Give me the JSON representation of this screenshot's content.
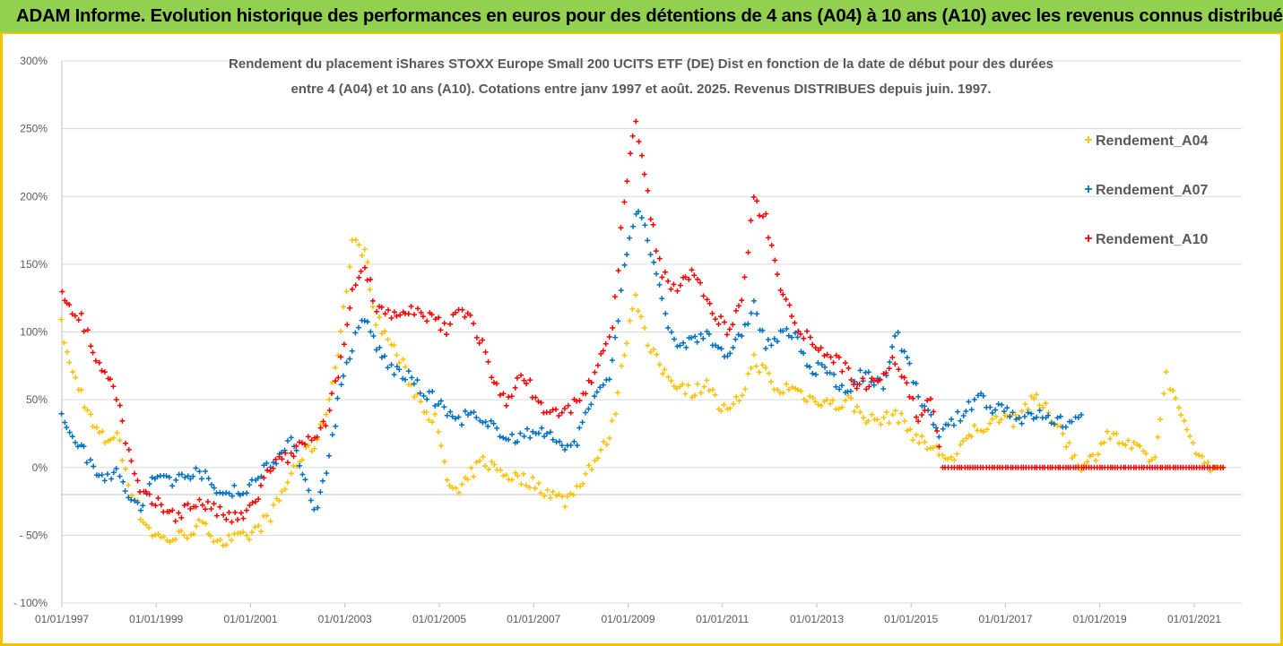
{
  "banner": {
    "text": "ADAM Informe. Evolution historique des performances en euros pour des détentions de 4 ans (A04) à 10 ans (A10) avec les revenus connus distribués",
    "background": "#92d050",
    "border": "#f2c200"
  },
  "chart_data": {
    "type": "scatter",
    "title": [
      "Rendement du placement iShares STOXX Europe Small 200 UCITS ETF (DE) Dist en fonction de la date de début pour des durées",
      "entre 4 (A04) et 10 ans (A10). Cotations entre janv 1997 et août. 2025. Revenus DISTRIBUES depuis juin. 1997."
    ],
    "xlabel": "",
    "ylabel": "",
    "x_tick_labels": [
      "01/01/1997",
      "01/01/1999",
      "01/01/2001",
      "01/01/2003",
      "01/01/2005",
      "01/01/2007",
      "01/01/2009",
      "01/01/2011",
      "01/01/2013",
      "01/01/2015",
      "01/01/2017",
      "01/01/2019",
      "01/01/2021"
    ],
    "x_range": [
      "1997-01-01",
      "2021-09-01"
    ],
    "y_tick_labels": [
      "300%",
      "250%",
      "200%",
      "150%",
      "100%",
      "50%",
      "0%",
      "- 50%",
      "- 100%"
    ],
    "ylim": [
      -100,
      300
    ],
    "grid": true,
    "legend_position": "right",
    "marker": "+",
    "series": [
      {
        "name": "Rendement_A04",
        "color": "#ffc000",
        "points": [
          [
            "1997-01",
            105
          ],
          [
            "1997-03",
            75
          ],
          [
            "1997-06",
            55
          ],
          [
            "1997-09",
            30
          ],
          [
            "1997-12",
            20
          ],
          [
            "1998-03",
            25
          ],
          [
            "1998-06",
            -10
          ],
          [
            "1998-09",
            -35
          ],
          [
            "1998-12",
            -48
          ],
          [
            "1999-03",
            -53
          ],
          [
            "1999-06",
            -52
          ],
          [
            "1999-09",
            -48
          ],
          [
            "1999-12",
            -43
          ],
          [
            "2000-03",
            -48
          ],
          [
            "2000-06",
            -55
          ],
          [
            "2000-09",
            -53
          ],
          [
            "2000-12",
            -52
          ],
          [
            "2001-03",
            -45
          ],
          [
            "2001-06",
            -35
          ],
          [
            "2001-09",
            -20
          ],
          [
            "2001-12",
            0
          ],
          [
            "2002-03",
            10
          ],
          [
            "2002-06",
            20
          ],
          [
            "2002-09",
            50
          ],
          [
            "2002-12",
            100
          ],
          [
            "2003-03",
            165
          ],
          [
            "2003-06",
            160
          ],
          [
            "2003-09",
            110
          ],
          [
            "2003-12",
            95
          ],
          [
            "2004-03",
            80
          ],
          [
            "2004-06",
            60
          ],
          [
            "2004-09",
            45
          ],
          [
            "2004-12",
            35
          ],
          [
            "2005-03",
            -10
          ],
          [
            "2005-06",
            -20
          ],
          [
            "2005-09",
            -5
          ],
          [
            "2005-12",
            5
          ],
          [
            "2006-03",
            0
          ],
          [
            "2006-06",
            -5
          ],
          [
            "2006-09",
            -8
          ],
          [
            "2006-12",
            -10
          ],
          [
            "2007-03",
            -15
          ],
          [
            "2007-06",
            -20
          ],
          [
            "2007-09",
            -25
          ],
          [
            "2007-12",
            -15
          ],
          [
            "2008-03",
            0
          ],
          [
            "2008-06",
            10
          ],
          [
            "2008-09",
            30
          ],
          [
            "2008-12",
            85
          ],
          [
            "2009-03",
            130
          ],
          [
            "2009-06",
            90
          ],
          [
            "2009-09",
            75
          ],
          [
            "2009-12",
            65
          ],
          [
            "2010-03",
            60
          ],
          [
            "2010-06",
            55
          ],
          [
            "2010-09",
            65
          ],
          [
            "2010-12",
            45
          ],
          [
            "2011-03",
            40
          ],
          [
            "2011-06",
            55
          ],
          [
            "2011-09",
            80
          ],
          [
            "2011-12",
            70
          ],
          [
            "2012-03",
            55
          ],
          [
            "2012-06",
            60
          ],
          [
            "2012-09",
            55
          ],
          [
            "2012-12",
            50
          ],
          [
            "2013-03",
            50
          ],
          [
            "2013-06",
            45
          ],
          [
            "2013-09",
            50
          ],
          [
            "2013-12",
            40
          ],
          [
            "2014-03",
            35
          ],
          [
            "2014-06",
            35
          ],
          [
            "2014-09",
            40
          ],
          [
            "2014-12",
            30
          ],
          [
            "2015-03",
            20
          ],
          [
            "2015-06",
            15
          ],
          [
            "2015-09",
            10
          ],
          [
            "2015-12",
            5
          ],
          [
            "2016-03",
            20
          ],
          [
            "2016-06",
            30
          ],
          [
            "2016-09",
            30
          ],
          [
            "2016-12",
            40
          ],
          [
            "2017-03",
            35
          ],
          [
            "2017-06",
            45
          ],
          [
            "2017-09",
            50
          ],
          [
            "2017-12",
            40
          ],
          [
            "2018-03",
            30
          ],
          [
            "2018-06",
            10
          ],
          [
            "2018-09",
            0
          ],
          [
            "2018-12",
            10
          ],
          [
            "2019-03",
            25
          ],
          [
            "2019-06",
            20
          ],
          [
            "2019-09",
            15
          ],
          [
            "2019-12",
            10
          ],
          [
            "2020-03",
            5
          ],
          [
            "2020-06",
            70
          ],
          [
            "2020-09",
            40
          ],
          [
            "2020-12",
            25
          ],
          [
            "2021-03",
            5
          ],
          [
            "2021-06",
            0
          ],
          [
            "2021-09",
            0
          ]
        ]
      },
      {
        "name": "Rendement_A07",
        "color": "#0070c0",
        "points": [
          [
            "1997-01",
            35
          ],
          [
            "1997-03",
            28
          ],
          [
            "1997-06",
            15
          ],
          [
            "1997-09",
            0
          ],
          [
            "1997-12",
            -5
          ],
          [
            "1998-03",
            -5
          ],
          [
            "1998-06",
            -20
          ],
          [
            "1998-09",
            -32
          ],
          [
            "1998-12",
            -10
          ],
          [
            "1999-03",
            -5
          ],
          [
            "1999-06",
            -10
          ],
          [
            "1999-09",
            -5
          ],
          [
            "1999-12",
            0
          ],
          [
            "2000-03",
            -15
          ],
          [
            "2000-06",
            -20
          ],
          [
            "2000-09",
            -15
          ],
          [
            "2000-12",
            -20
          ],
          [
            "2001-03",
            -5
          ],
          [
            "2001-06",
            5
          ],
          [
            "2001-09",
            10
          ],
          [
            "2001-12",
            20
          ],
          [
            "2002-03",
            -10
          ],
          [
            "2002-06",
            -32
          ],
          [
            "2002-09",
            10
          ],
          [
            "2002-12",
            60
          ],
          [
            "2003-03",
            90
          ],
          [
            "2003-06",
            110
          ],
          [
            "2003-09",
            90
          ],
          [
            "2003-12",
            75
          ],
          [
            "2004-03",
            70
          ],
          [
            "2004-06",
            65
          ],
          [
            "2004-09",
            55
          ],
          [
            "2004-12",
            50
          ],
          [
            "2005-03",
            40
          ],
          [
            "2005-06",
            35
          ],
          [
            "2005-09",
            40
          ],
          [
            "2005-12",
            30
          ],
          [
            "2006-03",
            30
          ],
          [
            "2006-06",
            25
          ],
          [
            "2006-09",
            20
          ],
          [
            "2006-12",
            25
          ],
          [
            "2007-03",
            30
          ],
          [
            "2007-06",
            20
          ],
          [
            "2007-09",
            15
          ],
          [
            "2007-12",
            20
          ],
          [
            "2008-03",
            45
          ],
          [
            "2008-06",
            55
          ],
          [
            "2008-09",
            75
          ],
          [
            "2008-12",
            150
          ],
          [
            "2009-03",
            190
          ],
          [
            "2009-06",
            170
          ],
          [
            "2009-09",
            130
          ],
          [
            "2009-12",
            95
          ],
          [
            "2010-03",
            90
          ],
          [
            "2010-06",
            95
          ],
          [
            "2010-09",
            100
          ],
          [
            "2010-12",
            90
          ],
          [
            "2011-03",
            80
          ],
          [
            "2011-06",
            100
          ],
          [
            "2011-09",
            120
          ],
          [
            "2011-12",
            90
          ],
          [
            "2012-03",
            95
          ],
          [
            "2012-06",
            100
          ],
          [
            "2012-09",
            90
          ],
          [
            "2012-12",
            70
          ],
          [
            "2013-03",
            75
          ],
          [
            "2013-06",
            60
          ],
          [
            "2013-09",
            55
          ],
          [
            "2013-12",
            70
          ],
          [
            "2014-03",
            65
          ],
          [
            "2014-06",
            60
          ],
          [
            "2014-09",
            100
          ],
          [
            "2014-12",
            80
          ],
          [
            "2015-03",
            50
          ],
          [
            "2015-06",
            35
          ],
          [
            "2015-09",
            25
          ],
          [
            "2015-12",
            35
          ],
          [
            "2016-03",
            40
          ],
          [
            "2016-06",
            55
          ],
          [
            "2016-09",
            45
          ],
          [
            "2016-12",
            45
          ],
          [
            "2017-03",
            40
          ],
          [
            "2017-06",
            35
          ],
          [
            "2017-09",
            40
          ],
          [
            "2017-12",
            35
          ],
          [
            "2018-03",
            35
          ],
          [
            "2018-06",
            30
          ],
          [
            "2018-09",
            40
          ]
        ]
      },
      {
        "name": "Rendement_A10",
        "color": "#ff0000",
        "points": [
          [
            "1997-01",
            130
          ],
          [
            "1997-03",
            120
          ],
          [
            "1997-06",
            110
          ],
          [
            "1997-09",
            85
          ],
          [
            "1997-12",
            70
          ],
          [
            "1998-03",
            55
          ],
          [
            "1998-06",
            10
          ],
          [
            "1998-09",
            -20
          ],
          [
            "1998-12",
            -25
          ],
          [
            "1999-03",
            -30
          ],
          [
            "1999-06",
            -35
          ],
          [
            "1999-09",
            -30
          ],
          [
            "1999-12",
            -25
          ],
          [
            "2000-03",
            -30
          ],
          [
            "2000-06",
            -35
          ],
          [
            "2000-09",
            -38
          ],
          [
            "2000-12",
            -35
          ],
          [
            "2001-03",
            -20
          ],
          [
            "2001-06",
            0
          ],
          [
            "2001-09",
            5
          ],
          [
            "2001-12",
            10
          ],
          [
            "2002-03",
            20
          ],
          [
            "2002-06",
            20
          ],
          [
            "2002-09",
            40
          ],
          [
            "2002-12",
            80
          ],
          [
            "2003-03",
            130
          ],
          [
            "2003-06",
            150
          ],
          [
            "2003-09",
            120
          ],
          [
            "2003-12",
            115
          ],
          [
            "2004-03",
            110
          ],
          [
            "2004-06",
            115
          ],
          [
            "2004-09",
            110
          ],
          [
            "2004-12",
            110
          ],
          [
            "2005-03",
            100
          ],
          [
            "2005-06",
            120
          ],
          [
            "2005-09",
            110
          ],
          [
            "2005-12",
            90
          ],
          [
            "2006-03",
            60
          ],
          [
            "2006-06",
            50
          ],
          [
            "2006-09",
            65
          ],
          [
            "2006-12",
            60
          ],
          [
            "2007-03",
            45
          ],
          [
            "2007-06",
            40
          ],
          [
            "2007-09",
            40
          ],
          [
            "2007-12",
            50
          ],
          [
            "2008-03",
            60
          ],
          [
            "2008-06",
            80
          ],
          [
            "2008-09",
            100
          ],
          [
            "2008-12",
            200
          ],
          [
            "2009-03",
            255
          ],
          [
            "2009-06",
            200
          ],
          [
            "2009-09",
            150
          ],
          [
            "2009-12",
            130
          ],
          [
            "2010-03",
            140
          ],
          [
            "2010-06",
            145
          ],
          [
            "2010-09",
            120
          ],
          [
            "2010-12",
            110
          ],
          [
            "2011-03",
            100
          ],
          [
            "2011-06",
            125
          ],
          [
            "2011-09",
            195
          ],
          [
            "2011-12",
            185
          ],
          [
            "2012-03",
            140
          ],
          [
            "2012-06",
            120
          ],
          [
            "2012-09",
            100
          ],
          [
            "2012-12",
            95
          ],
          [
            "2013-03",
            85
          ],
          [
            "2013-06",
            80
          ],
          [
            "2013-09",
            70
          ],
          [
            "2013-12",
            60
          ],
          [
            "2014-03",
            65
          ],
          [
            "2014-06",
            70
          ],
          [
            "2014-09",
            80
          ],
          [
            "2014-12",
            60
          ],
          [
            "2015-03",
            35
          ],
          [
            "2015-06",
            50
          ],
          [
            "2015-09",
            0
          ],
          [
            "2015-12",
            0
          ],
          [
            "2016-06",
            0
          ],
          [
            "2017-01",
            0
          ],
          [
            "2017-07",
            0
          ],
          [
            "2018-01",
            0
          ],
          [
            "2018-07",
            0
          ],
          [
            "2019-01",
            0
          ],
          [
            "2019-07",
            0
          ],
          [
            "2020-01",
            0
          ],
          [
            "2020-07",
            0
          ],
          [
            "2021-01",
            0
          ],
          [
            "2021-09",
            0
          ]
        ]
      }
    ]
  }
}
